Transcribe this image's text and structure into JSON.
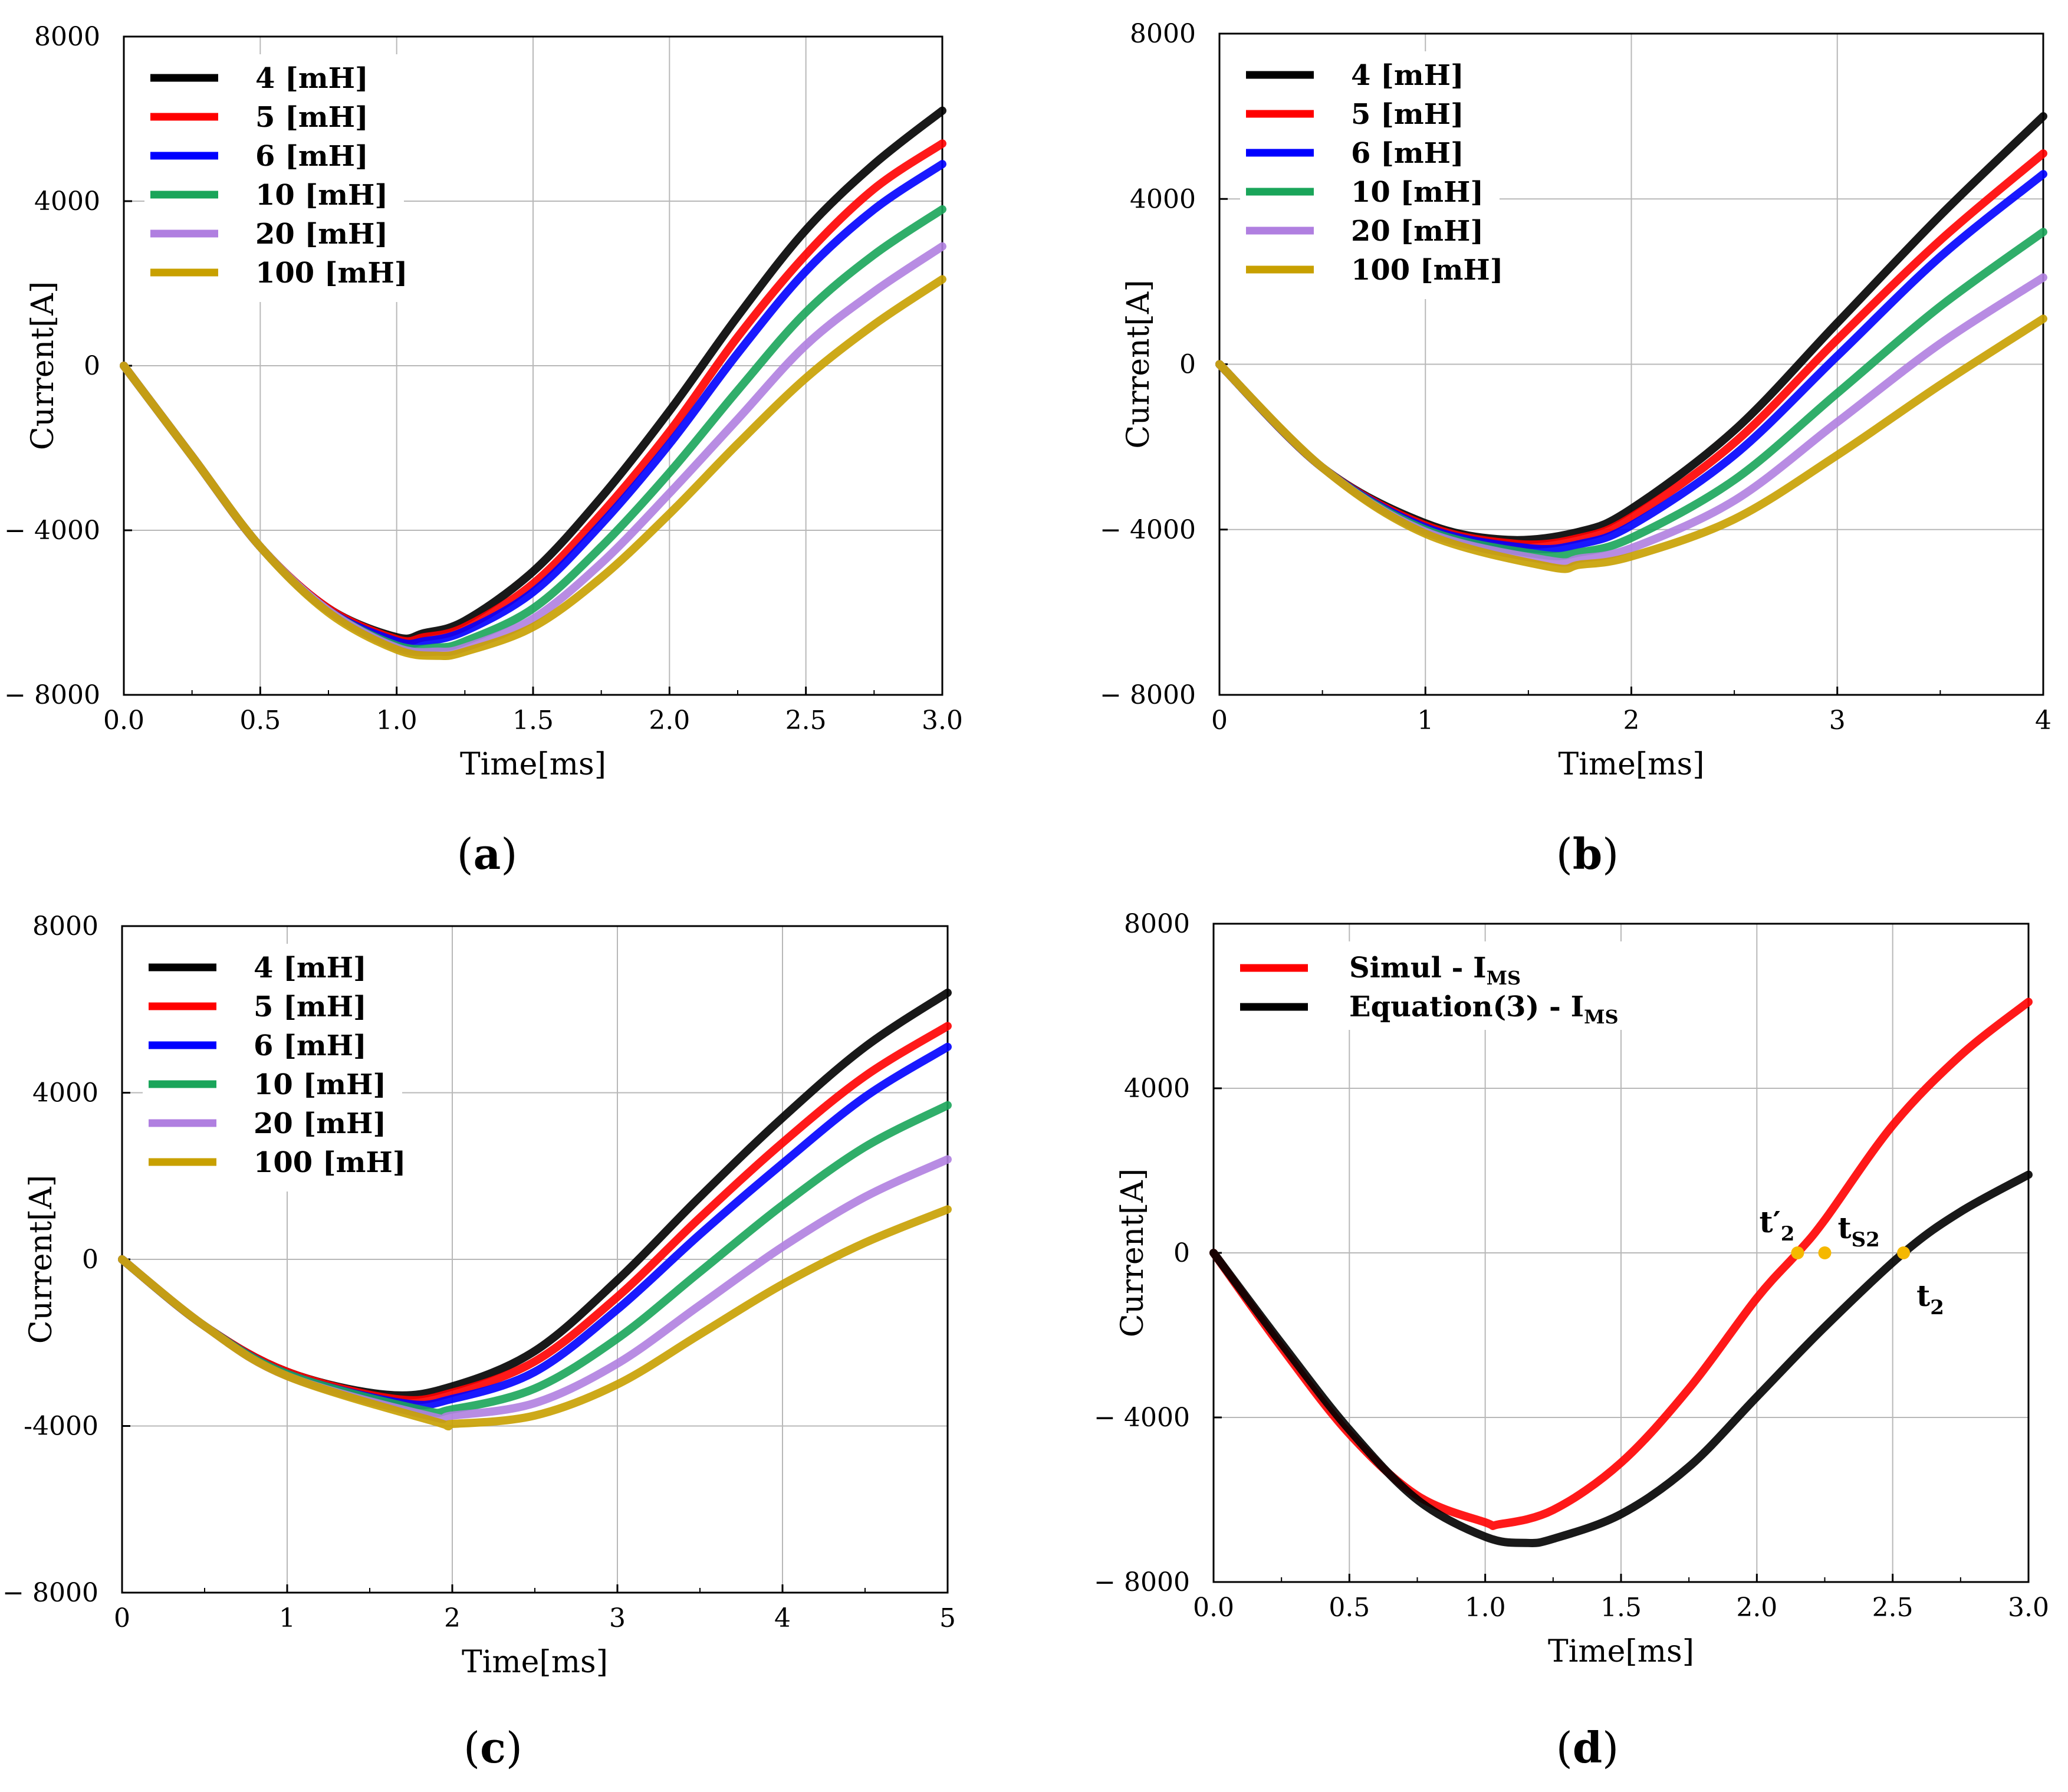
{
  "chart_data": [
    {
      "panel": "a",
      "type": "line",
      "title": "",
      "xlabel": "Time[ms]",
      "ylabel": "Current[A]",
      "xlim": [
        0,
        3.0
      ],
      "ylim": [
        -8000,
        8000
      ],
      "xticks": [
        "0.0",
        "0.5",
        "1.0",
        "1.5",
        "2.0",
        "2.5",
        "3.0"
      ],
      "yticks": [
        "8000",
        "4000",
        "0",
        "− 4000",
        "− 8000"
      ],
      "grid": true,
      "legend_position": "top-left",
      "series": [
        {
          "name": "4 [mH]",
          "color": "#000000",
          "x": [
            0,
            0.25,
            0.5,
            0.75,
            1.0,
            1.1,
            1.25,
            1.5,
            1.75,
            2.0,
            2.25,
            2.5,
            2.75,
            3.0
          ],
          "y": [
            0,
            -2200,
            -4400,
            -5900,
            -6600,
            -6500,
            -6200,
            -5000,
            -3200,
            -1100,
            1200,
            3300,
            4900,
            6200
          ]
        },
        {
          "name": "5 [mH]",
          "color": "#ff0000",
          "x": [
            0,
            0.25,
            0.5,
            0.75,
            1.0,
            1.1,
            1.25,
            1.5,
            1.75,
            2.0,
            2.25,
            2.5,
            2.75,
            3.0
          ],
          "y": [
            0,
            -2200,
            -4400,
            -5900,
            -6650,
            -6600,
            -6350,
            -5300,
            -3600,
            -1600,
            700,
            2700,
            4300,
            5400
          ]
        },
        {
          "name": "6 [mH]",
          "color": "#0000ff",
          "x": [
            0,
            0.25,
            0.5,
            0.75,
            1.0,
            1.1,
            1.25,
            1.5,
            1.75,
            2.0,
            2.25,
            2.5,
            2.75,
            3.0
          ],
          "y": [
            0,
            -2200,
            -4400,
            -5950,
            -6700,
            -6700,
            -6450,
            -5500,
            -3850,
            -1900,
            300,
            2300,
            3800,
            4900
          ]
        },
        {
          "name": "10 [mH]",
          "color": "#1aa55a",
          "x": [
            0,
            0.25,
            0.5,
            0.75,
            1.0,
            1.15,
            1.25,
            1.5,
            1.75,
            2.0,
            2.25,
            2.5,
            2.75,
            3.0
          ],
          "y": [
            0,
            -2200,
            -4400,
            -5950,
            -6800,
            -6850,
            -6700,
            -5900,
            -4400,
            -2600,
            -600,
            1300,
            2700,
            3800
          ]
        },
        {
          "name": "20 [mH]",
          "color": "#b07fe0",
          "x": [
            0,
            0.25,
            0.5,
            0.75,
            1.0,
            1.15,
            1.25,
            1.5,
            1.75,
            2.0,
            2.25,
            2.5,
            2.75,
            3.0
          ],
          "y": [
            0,
            -2200,
            -4400,
            -5950,
            -6850,
            -6950,
            -6850,
            -6150,
            -4800,
            -3100,
            -1300,
            500,
            1800,
            2900
          ]
        },
        {
          "name": "100 [mH]",
          "color": "#c8a000",
          "x": [
            0,
            0.25,
            0.5,
            0.75,
            1.0,
            1.15,
            1.25,
            1.5,
            1.75,
            2.0,
            2.25,
            2.5,
            2.75,
            3.0
          ],
          "y": [
            0,
            -2200,
            -4400,
            -6000,
            -6900,
            -7050,
            -6950,
            -6350,
            -5150,
            -3600,
            -1900,
            -300,
            1000,
            2100
          ]
        }
      ]
    },
    {
      "panel": "b",
      "type": "line",
      "title": "",
      "xlabel": "Time[ms]",
      "ylabel": "Current[A]",
      "xlim": [
        0,
        4
      ],
      "ylim": [
        -8000,
        8000
      ],
      "xticks": [
        "0",
        "1",
        "2",
        "3",
        "4"
      ],
      "yticks": [
        "8000",
        "4000",
        "0",
        "− 4000",
        "− 8000"
      ],
      "grid": true,
      "legend_position": "top-left",
      "series": [
        {
          "name": "4 [mH]",
          "color": "#000000",
          "x": [
            0,
            0.5,
            1.0,
            1.4,
            1.75,
            2.0,
            2.5,
            3.0,
            3.5,
            4.0
          ],
          "y": [
            0,
            -2500,
            -3850,
            -4250,
            -4050,
            -3500,
            -1600,
            1000,
            3600,
            6000
          ]
        },
        {
          "name": "5 [mH]",
          "color": "#ff0000",
          "x": [
            0,
            0.5,
            1.0,
            1.45,
            1.75,
            2.0,
            2.5,
            3.0,
            3.5,
            4.0
          ],
          "y": [
            0,
            -2500,
            -3900,
            -4350,
            -4200,
            -3700,
            -1900,
            600,
            3000,
            5100
          ]
        },
        {
          "name": "6 [mH]",
          "color": "#0000ff",
          "x": [
            0,
            0.5,
            1.0,
            1.5,
            1.75,
            2.0,
            2.5,
            3.0,
            3.5,
            4.0
          ],
          "y": [
            0,
            -2500,
            -3950,
            -4450,
            -4350,
            -3900,
            -2200,
            200,
            2600,
            4600
          ]
        },
        {
          "name": "10 [mH]",
          "color": "#1aa55a",
          "x": [
            0,
            0.5,
            1.0,
            1.55,
            1.75,
            2.0,
            2.5,
            3.0,
            3.5,
            4.0
          ],
          "y": [
            0,
            -2500,
            -4000,
            -4600,
            -4550,
            -4200,
            -2800,
            -700,
            1400,
            3200
          ]
        },
        {
          "name": "20 [mH]",
          "color": "#b07fe0",
          "x": [
            0,
            0.5,
            1.0,
            1.6,
            1.75,
            2.0,
            2.5,
            3.0,
            3.5,
            4.0
          ],
          "y": [
            0,
            -2500,
            -4050,
            -4750,
            -4700,
            -4450,
            -3300,
            -1400,
            500,
            2100
          ]
        },
        {
          "name": "100 [mH]",
          "color": "#c8a000",
          "x": [
            0,
            0.5,
            1.0,
            1.6,
            1.75,
            2.0,
            2.5,
            3.0,
            3.5,
            4.0
          ],
          "y": [
            0,
            -2500,
            -4100,
            -4900,
            -4850,
            -4650,
            -3750,
            -2200,
            -500,
            1100
          ]
        }
      ]
    },
    {
      "panel": "c",
      "type": "line",
      "title": "",
      "xlabel": "Time[ms]",
      "ylabel": "Current[A]",
      "xlim": [
        0,
        5
      ],
      "ylim": [
        -8000,
        8000
      ],
      "xticks": [
        "0",
        "1",
        "2",
        "3",
        "4",
        "5"
      ],
      "yticks": [
        "8000",
        "4000",
        "0",
        "-4000",
        "− 8000"
      ],
      "grid": true,
      "legend_position": "top-left",
      "series": [
        {
          "name": "4 [mH]",
          "color": "#000000",
          "x": [
            0,
            0.5,
            1.0,
            1.6,
            2.0,
            2.5,
            3.0,
            3.5,
            4.0,
            4.5,
            5.0
          ],
          "y": [
            0,
            -1600,
            -2700,
            -3250,
            -3050,
            -2200,
            -500,
            1500,
            3400,
            5100,
            6400
          ]
        },
        {
          "name": "5 [mH]",
          "color": "#ff0000",
          "x": [
            0,
            0.5,
            1.0,
            1.65,
            2.0,
            2.5,
            3.0,
            3.5,
            4.0,
            4.5,
            5.0
          ],
          "y": [
            0,
            -1600,
            -2700,
            -3350,
            -3200,
            -2450,
            -900,
            1000,
            2800,
            4400,
            5600
          ]
        },
        {
          "name": "6 [mH]",
          "color": "#0000ff",
          "x": [
            0,
            0.5,
            1.0,
            1.7,
            2.0,
            2.5,
            3.0,
            3.5,
            4.0,
            4.5,
            5.0
          ],
          "y": [
            0,
            -1600,
            -2750,
            -3450,
            -3350,
            -2700,
            -1200,
            600,
            2300,
            3900,
            5100
          ]
        },
        {
          "name": "10 [mH]",
          "color": "#1aa55a",
          "x": [
            0,
            0.5,
            1.0,
            1.8,
            2.0,
            2.5,
            3.0,
            3.5,
            4.0,
            4.5,
            5.0
          ],
          "y": [
            0,
            -1600,
            -2750,
            -3600,
            -3600,
            -3100,
            -1900,
            -300,
            1300,
            2700,
            3700
          ]
        },
        {
          "name": "20 [mH]",
          "color": "#b07fe0",
          "x": [
            0,
            0.5,
            1.0,
            1.85,
            2.0,
            2.5,
            3.0,
            3.5,
            4.0,
            4.5,
            5.0
          ],
          "y": [
            0,
            -1600,
            -2800,
            -3750,
            -3750,
            -3450,
            -2500,
            -1100,
            300,
            1500,
            2400
          ]
        },
        {
          "name": "100 [mH]",
          "color": "#c8a000",
          "x": [
            0,
            0.5,
            1.0,
            1.9,
            2.0,
            2.5,
            3.0,
            3.5,
            4.0,
            4.5,
            5.0
          ],
          "y": [
            0,
            -1600,
            -2800,
            -3900,
            -3950,
            -3750,
            -3000,
            -1800,
            -600,
            400,
            1200
          ]
        }
      ]
    },
    {
      "panel": "d",
      "type": "line",
      "title": "",
      "xlabel": "Time[ms]",
      "ylabel": "Current[A]",
      "xlim": [
        0,
        3.0
      ],
      "ylim": [
        -8000,
        8000
      ],
      "xticks": [
        "0.0",
        "0.5",
        "1.0",
        "1.5",
        "2.0",
        "2.5",
        "3.0"
      ],
      "yticks": [
        "8000",
        "4000",
        "0",
        "− 4000",
        "− 8000"
      ],
      "grid": true,
      "legend_position": "top-left",
      "legend_entries": [
        {
          "label_main": "Simul - I",
          "label_sub": "MS",
          "color": "#ff0000"
        },
        {
          "label_main": "Equation(3) - I",
          "label_sub": "MS",
          "color": "#000000"
        }
      ],
      "series": [
        {
          "name": "Simul - I MS",
          "color": "#ff0000",
          "x": [
            0,
            0.25,
            0.5,
            0.75,
            1.0,
            1.05,
            1.25,
            1.5,
            1.75,
            2.0,
            2.15,
            2.25,
            2.5,
            2.75,
            3.0
          ],
          "y": [
            0,
            -2300,
            -4400,
            -5900,
            -6550,
            -6600,
            -6250,
            -5100,
            -3300,
            -1100,
            0,
            800,
            3100,
            4800,
            6100
          ]
        },
        {
          "name": "Equation(3) - I MS",
          "color": "#000000",
          "x": [
            0,
            0.25,
            0.5,
            0.75,
            1.0,
            1.15,
            1.25,
            1.5,
            1.75,
            2.0,
            2.25,
            2.54,
            2.75,
            3.0
          ],
          "y": [
            0,
            -2200,
            -4300,
            -6000,
            -6900,
            -7050,
            -6950,
            -6350,
            -5200,
            -3500,
            -1800,
            0,
            1000,
            1900
          ]
        }
      ],
      "points": [
        {
          "x": 2.15,
          "y": 0,
          "label_main": "t′",
          "label_sub": "2",
          "color": "#f5b800"
        },
        {
          "x": 2.25,
          "y": 0,
          "label_main": "t",
          "label_sub": "S2",
          "color": "#f5b800"
        },
        {
          "x": 2.54,
          "y": 0,
          "label_main": "t",
          "label_sub": "2",
          "color": "#f5b800"
        }
      ]
    }
  ],
  "captions": [
    "a",
    "b",
    "c",
    "d"
  ]
}
